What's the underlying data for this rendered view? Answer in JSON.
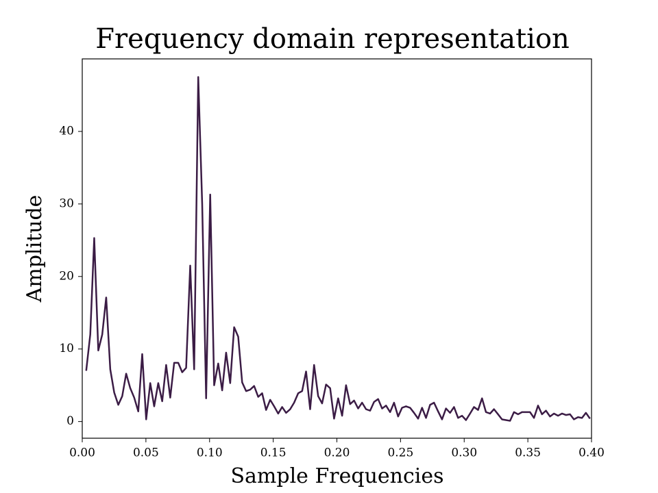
{
  "chart_data": {
    "type": "line",
    "title": "Frequency domain representation",
    "x_label": "Sample Frequencies",
    "y_label": "Amplitude",
    "x": [
      0.0031,
      0.0063,
      0.0094,
      0.0126,
      0.0157,
      0.0188,
      0.022,
      0.0251,
      0.0283,
      0.0314,
      0.0345,
      0.0377,
      0.0408,
      0.044,
      0.0471,
      0.0502,
      0.0534,
      0.0565,
      0.0597,
      0.0628,
      0.0659,
      0.0691,
      0.0722,
      0.0754,
      0.0785,
      0.0816,
      0.0848,
      0.0879,
      0.0911,
      0.0942,
      0.0973,
      0.1005,
      0.1036,
      0.1068,
      0.1099,
      0.113,
      0.1162,
      0.1193,
      0.1225,
      0.1256,
      0.1287,
      0.1319,
      0.135,
      0.1382,
      0.1413,
      0.1444,
      0.1476,
      0.1507,
      0.1539,
      0.157,
      0.1601,
      0.1633,
      0.1664,
      0.1696,
      0.1727,
      0.1758,
      0.179,
      0.1821,
      0.1853,
      0.1884,
      0.1915,
      0.1947,
      0.1978,
      0.201,
      0.2041,
      0.2072,
      0.2104,
      0.2135,
      0.2167,
      0.2198,
      0.2229,
      0.2261,
      0.2292,
      0.2324,
      0.2355,
      0.2386,
      0.2418,
      0.2449,
      0.2481,
      0.2512,
      0.2543,
      0.2575,
      0.2606,
      0.2638,
      0.2669,
      0.27,
      0.2732,
      0.2763,
      0.2795,
      0.2826,
      0.2857,
      0.2889,
      0.292,
      0.2952,
      0.2983,
      0.3014,
      0.3046,
      0.3077,
      0.3109,
      0.314,
      0.3171,
      0.3203,
      0.3234,
      0.3266,
      0.3297,
      0.3328,
      0.336,
      0.3391,
      0.3423,
      0.3454,
      0.3485,
      0.3517,
      0.3548,
      0.358,
      0.3611,
      0.3642,
      0.3674,
      0.3705,
      0.3737,
      0.3768,
      0.3799,
      0.3831,
      0.3862,
      0.3894,
      0.3925,
      0.3956,
      0.3988
    ],
    "series": [
      {
        "color": "#3b1c45",
        "values": [
          7,
          12,
          25.3,
          9.8,
          12,
          17.1,
          7.2,
          4,
          2.3,
          3.5,
          6.6,
          4.6,
          3.3,
          1.4,
          9.3,
          0.3,
          5.3,
          2.1,
          5.3,
          2.8,
          7.8,
          3.3,
          8.1,
          8.1,
          6.8,
          7.4,
          21.5,
          7.2,
          47.5,
          30,
          3.2,
          31.3,
          5,
          8,
          4.3,
          9.5,
          5.3,
          13,
          11.7,
          5.4,
          4.2,
          4.4,
          4.9,
          3.4,
          3.9,
          1.6,
          3,
          2.1,
          1.1,
          2,
          1.2,
          1.7,
          2.6,
          3.9,
          4.2,
          6.9,
          1.7,
          7.8,
          3.5,
          2.5,
          5.1,
          4.6,
          0.4,
          3.2,
          0.8,
          5,
          2.4,
          2.9,
          1.8,
          2.6,
          1.7,
          1.5,
          2.7,
          3.1,
          1.8,
          2.2,
          1.3,
          2.6,
          0.7,
          1.9,
          2.1,
          1.9,
          1.2,
          0.4,
          1.9,
          0.5,
          2.3,
          2.6,
          1.4,
          0.3,
          1.8,
          1.2,
          2,
          0.5,
          0.8,
          0.2,
          1.1,
          2,
          1.6,
          3.2,
          1.3,
          1.1,
          1.7,
          1,
          0.3,
          0.2,
          0.1,
          1.3,
          1,
          1.3,
          1.3,
          1.3,
          0.5,
          2.2,
          1,
          1.5,
          0.7,
          1.1,
          0.8,
          1.1,
          0.9,
          1,
          0.3,
          0.6,
          0.5,
          1.2,
          0.4
        ]
      }
    ],
    "xlim": [
      0,
      0.4
    ],
    "ylim": [
      -2.3,
      50
    ],
    "xticks": [
      {
        "value": 0,
        "label": "0.00"
      },
      {
        "value": 0.05,
        "label": "0.05"
      },
      {
        "value": 0.1,
        "label": "0.10"
      },
      {
        "value": 0.15,
        "label": "0.15"
      },
      {
        "value": 0.2,
        "label": "0.20"
      },
      {
        "value": 0.25,
        "label": "0.25"
      },
      {
        "value": 0.3,
        "label": "0.30"
      },
      {
        "value": 0.35,
        "label": "0.35"
      },
      {
        "value": 0.4,
        "label": "0.40"
      }
    ],
    "yticks": [
      0,
      10,
      20,
      30,
      40
    ],
    "grid": false
  }
}
